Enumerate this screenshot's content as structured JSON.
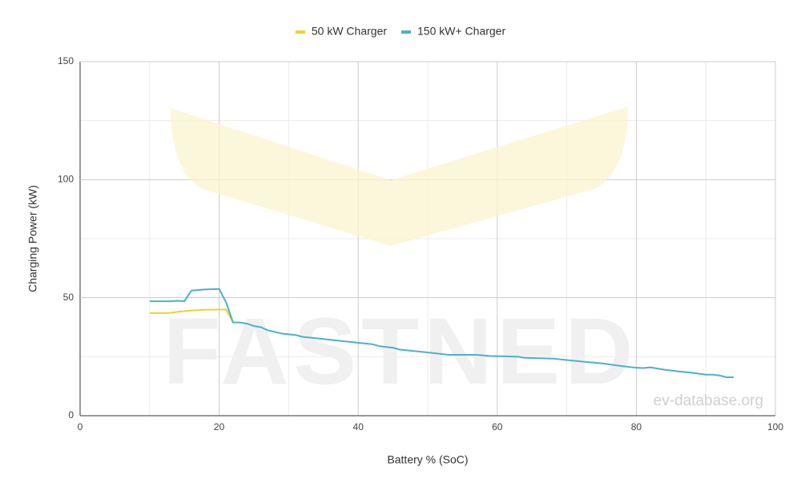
{
  "chart_data": {
    "type": "line",
    "x_label": "Battery % (SoC)",
    "y_label": "Charging Power (kW)",
    "watermark": "FASTNED",
    "source": "ev-database.org",
    "series": [
      {
        "name": "50 kW Charger",
        "color": "#f2d12e",
        "x": [
          10,
          12,
          13,
          14,
          16,
          18,
          20,
          21,
          22
        ],
        "values": [
          43.5,
          43.5,
          43.6,
          44,
          44.6,
          44.9,
          45,
          45,
          39.5
        ]
      },
      {
        "name": "150 kW+ Charger",
        "color": "#4bb0cf",
        "x": [
          10,
          13,
          14,
          15,
          16,
          17,
          18,
          20,
          21,
          22,
          23,
          24,
          25,
          26,
          27,
          28,
          29,
          31,
          32,
          35,
          38,
          42,
          43,
          45,
          46,
          50,
          53,
          57,
          59,
          63,
          64,
          68,
          70,
          72,
          75,
          78,
          80,
          81,
          82,
          84,
          86,
          88,
          90,
          91,
          92,
          93,
          94
        ],
        "values": [
          48.5,
          48.5,
          48.7,
          48.5,
          53,
          53.3,
          53.5,
          53.7,
          48,
          39.5,
          39.5,
          39,
          38,
          37.5,
          36.2,
          35.5,
          34.8,
          34.2,
          33.4,
          32.5,
          31.5,
          30.3,
          29.5,
          28.8,
          28,
          26.8,
          25.8,
          25.8,
          25.3,
          25,
          24.5,
          24.2,
          23.6,
          23,
          22.2,
          21,
          20.3,
          20.2,
          20.5,
          19.5,
          18.8,
          18.2,
          17.4,
          17.4,
          17,
          16.3,
          16.3
        ]
      }
    ],
    "xlim": [
      0,
      100
    ],
    "xticks": [
      0,
      20,
      40,
      60,
      80,
      100
    ],
    "ylim": [
      0,
      150
    ],
    "yticks": [
      0,
      50,
      100,
      150
    ],
    "grid": true
  }
}
